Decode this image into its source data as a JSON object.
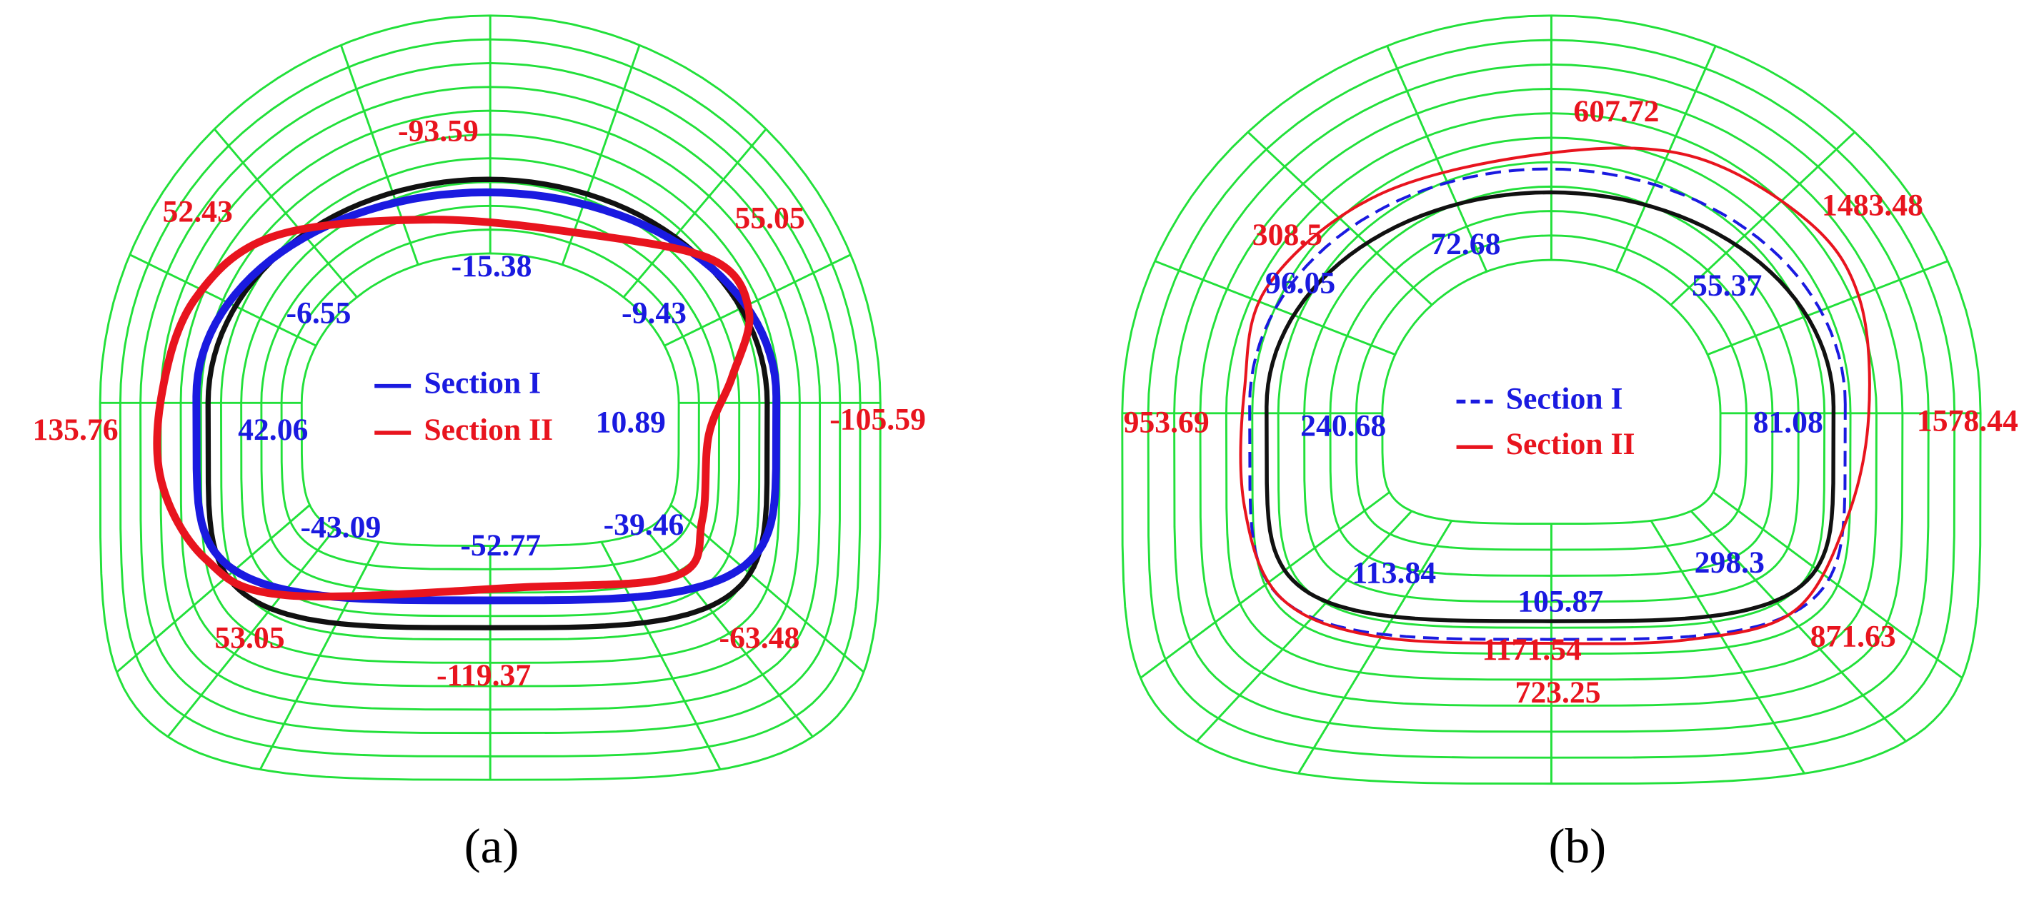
{
  "panels": [
    {
      "caption": "(a)",
      "legend": [
        "Section I",
        "Section II"
      ],
      "red_labels": [
        "-93.59",
        "52.43",
        "55.05",
        "135.76",
        "-105.59",
        "53.05",
        "-63.48",
        "-119.37"
      ],
      "blue_labels": [
        "-15.38",
        "-6.55",
        "-9.43",
        "42.06",
        "10.89",
        "-43.09",
        "-52.77",
        "-39.46"
      ]
    },
    {
      "caption": "(b)",
      "legend": [
        "Section I",
        "Section II"
      ],
      "red_labels": [
        "607.72",
        "308.5",
        "1483.48",
        "953.69",
        "1578.44",
        "1171.54",
        "871.63",
        "723.25"
      ],
      "blue_labels": [
        "72.68",
        "96.05",
        "55.37",
        "240.68",
        "81.08",
        "113.84",
        "105.87",
        "298.3"
      ]
    }
  ]
}
